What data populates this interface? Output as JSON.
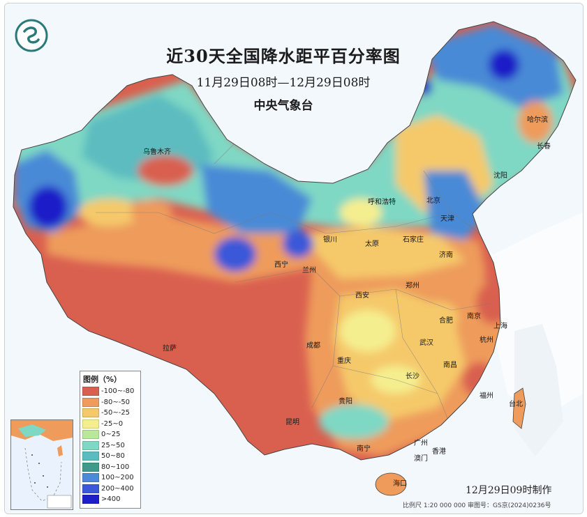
{
  "title": "近30天全国降水距平百分率图",
  "subtitle": "11月29日08时—12月29日08时",
  "agency": "中央气象台",
  "stamp": "12月29日09时制作",
  "scale_text": "比例尺 1:20 000 000    审图号：GS京(2024)0236号",
  "legend": {
    "title": "图例（%）",
    "items": [
      {
        "label": "-100~-80",
        "color": "#d9604f"
      },
      {
        "label": "-80~-50",
        "color": "#ee9b5b"
      },
      {
        "label": "-50~-25",
        "color": "#f5c96a"
      },
      {
        "label": "-25~0",
        "color": "#f5ee8f"
      },
      {
        "label": "0~25",
        "color": "#b9e89a"
      },
      {
        "label": "25~50",
        "color": "#7fd8c4"
      },
      {
        "label": "50~80",
        "color": "#5bbcc0"
      },
      {
        "label": "80~100",
        "color": "#3f9a8c"
      },
      {
        "label": "100~200",
        "color": "#4a8ad6"
      },
      {
        "label": "200~400",
        "color": "#3a58d8"
      },
      {
        "label": ">400",
        "color": "#1e1fc8"
      }
    ]
  },
  "cities": [
    {
      "name": "乌鲁木齐"
    },
    {
      "name": "哈尔滨"
    },
    {
      "name": "长春"
    },
    {
      "name": "沈阳"
    },
    {
      "name": "呼和浩特"
    },
    {
      "name": "北京"
    },
    {
      "name": "天津"
    },
    {
      "name": "银川"
    },
    {
      "name": "石家庄"
    },
    {
      "name": "太原"
    },
    {
      "name": "济南"
    },
    {
      "name": "西宁"
    },
    {
      "name": "兰州"
    },
    {
      "name": "郑州"
    },
    {
      "name": "西安"
    },
    {
      "name": "合肥"
    },
    {
      "name": "南京"
    },
    {
      "name": "上海"
    },
    {
      "name": "拉萨"
    },
    {
      "name": "成都"
    },
    {
      "name": "武汉"
    },
    {
      "name": "杭州"
    },
    {
      "name": "重庆"
    },
    {
      "name": "南昌"
    },
    {
      "name": "长沙"
    },
    {
      "name": "贵阳"
    },
    {
      "name": "福州"
    },
    {
      "name": "台北"
    },
    {
      "name": "昆明"
    },
    {
      "name": "南宁"
    },
    {
      "name": "广州"
    },
    {
      "name": "香港"
    },
    {
      "name": "澳门"
    },
    {
      "name": "海口"
    }
  ]
}
